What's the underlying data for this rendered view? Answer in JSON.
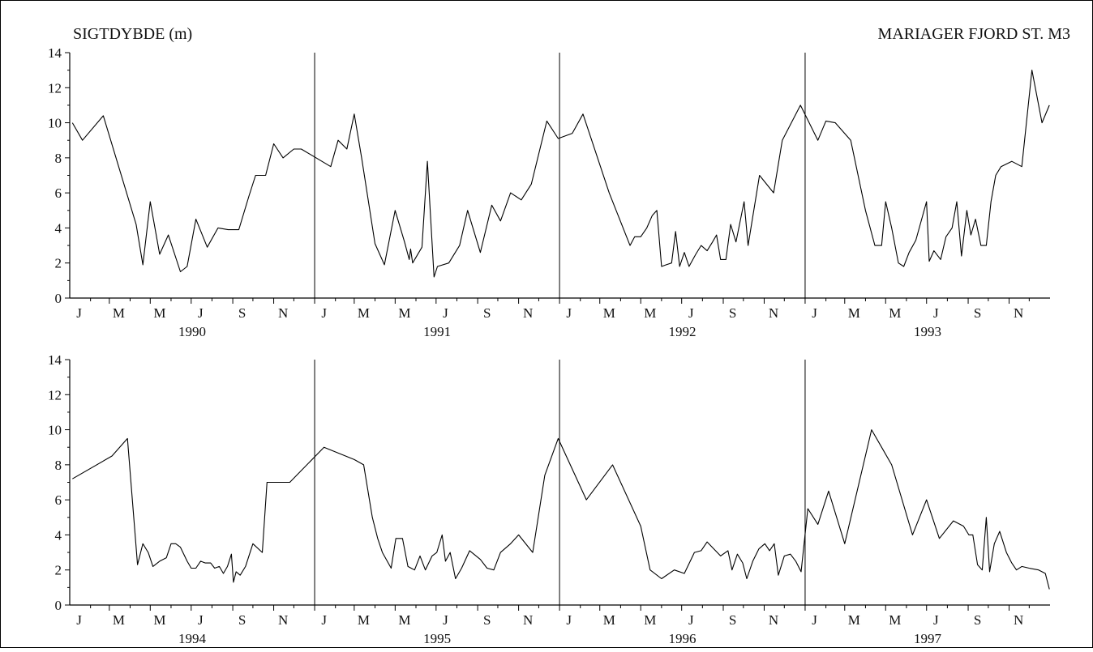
{
  "figure": {
    "title_left": "SIGTDYBDE (m)",
    "title_right": "MARIAGER FJORD  ST. M3"
  },
  "chart_data": [
    {
      "type": "line",
      "title": "",
      "ylim": [
        0,
        14
      ],
      "yticks": [
        0,
        2,
        4,
        6,
        8,
        10,
        12,
        14
      ],
      "xlim": [
        "1990-01-01",
        "1994-01-01"
      ],
      "years": [
        "1990",
        "1991",
        "1992",
        "1993"
      ],
      "month_labels": [
        "J",
        "M",
        "M",
        "J",
        "S",
        "N"
      ],
      "series": [
        {
          "points": [
            [
              "1990-01-05",
              10.0
            ],
            [
              "1990-01-20",
              9.0
            ],
            [
              "1990-02-20",
              10.4
            ],
            [
              "1990-04-10",
              4.2
            ],
            [
              "1990-04-20",
              1.9
            ],
            [
              "1990-05-01",
              5.5
            ],
            [
              "1990-05-15",
              2.5
            ],
            [
              "1990-05-28",
              3.6
            ],
            [
              "1990-06-15",
              1.5
            ],
            [
              "1990-06-25",
              1.8
            ],
            [
              "1990-07-08",
              4.5
            ],
            [
              "1990-07-25",
              2.9
            ],
            [
              "1990-08-10",
              4.0
            ],
            [
              "1990-08-25",
              3.9
            ],
            [
              "1990-09-10",
              3.9
            ],
            [
              "1990-09-25",
              5.8
            ],
            [
              "1990-10-05",
              7.0
            ],
            [
              "1990-10-20",
              7.0
            ],
            [
              "1990-11-01",
              8.8
            ],
            [
              "1990-11-15",
              8.0
            ],
            [
              "1990-12-01",
              8.5
            ],
            [
              "1990-12-12",
              8.5
            ],
            [
              "1991-01-25",
              7.5
            ],
            [
              "1991-02-05",
              9.0
            ],
            [
              "1991-02-18",
              8.5
            ],
            [
              "1991-03-01",
              10.5
            ],
            [
              "1991-03-12",
              8.0
            ],
            [
              "1991-04-01",
              3.1
            ],
            [
              "1991-04-15",
              1.9
            ],
            [
              "1991-05-01",
              5.0
            ],
            [
              "1991-05-15",
              3.2
            ],
            [
              "1991-05-22",
              2.2
            ],
            [
              "1991-05-24",
              2.8
            ],
            [
              "1991-05-27",
              2.0
            ],
            [
              "1991-06-10",
              2.9
            ],
            [
              "1991-06-18",
              7.8
            ],
            [
              "1991-06-28",
              1.2
            ],
            [
              "1991-07-03",
              1.8
            ],
            [
              "1991-07-20",
              2.0
            ],
            [
              "1991-08-05",
              3.0
            ],
            [
              "1991-08-17",
              5.0
            ],
            [
              "1991-09-05",
              2.6
            ],
            [
              "1991-09-22",
              5.3
            ],
            [
              "1991-10-05",
              4.4
            ],
            [
              "1991-10-20",
              6.0
            ],
            [
              "1991-11-05",
              5.6
            ],
            [
              "1991-11-20",
              6.5
            ],
            [
              "1991-12-13",
              10.1
            ],
            [
              "1991-12-30",
              9.1
            ],
            [
              "1992-01-20",
              9.4
            ],
            [
              "1992-02-05",
              10.5
            ],
            [
              "1992-03-15",
              6.0
            ],
            [
              "1992-04-15",
              3.0
            ],
            [
              "1992-04-22",
              3.5
            ],
            [
              "1992-05-01",
              3.5
            ],
            [
              "1992-05-10",
              4.0
            ],
            [
              "1992-05-18",
              4.7
            ],
            [
              "1992-05-25",
              5.0
            ],
            [
              "1992-06-01",
              1.8
            ],
            [
              "1992-06-08",
              1.9
            ],
            [
              "1992-06-16",
              2.0
            ],
            [
              "1992-06-22",
              3.8
            ],
            [
              "1992-06-28",
              1.8
            ],
            [
              "1992-07-05",
              2.6
            ],
            [
              "1992-07-12",
              1.8
            ],
            [
              "1992-07-22",
              2.5
            ],
            [
              "1992-07-30",
              3.0
            ],
            [
              "1992-08-08",
              2.7
            ],
            [
              "1992-08-16",
              3.2
            ],
            [
              "1992-08-22",
              3.6
            ],
            [
              "1992-08-28",
              2.2
            ],
            [
              "1992-09-05",
              2.2
            ],
            [
              "1992-09-12",
              4.2
            ],
            [
              "1992-09-20",
              3.2
            ],
            [
              "1992-10-02",
              5.5
            ],
            [
              "1992-10-08",
              3.0
            ],
            [
              "1992-10-25",
              7.0
            ],
            [
              "1992-11-15",
              6.0
            ],
            [
              "1992-11-28",
              9.0
            ],
            [
              "1992-12-25",
              11.0
            ],
            [
              "1993-01-20",
              9.0
            ],
            [
              "1993-02-01",
              10.1
            ],
            [
              "1993-02-15",
              10.0
            ],
            [
              "1993-03-10",
              9.0
            ],
            [
              "1993-04-01",
              5.0
            ],
            [
              "1993-04-15",
              3.0
            ],
            [
              "1993-04-25",
              3.0
            ],
            [
              "1993-05-01",
              5.5
            ],
            [
              "1993-05-10",
              4.0
            ],
            [
              "1993-05-20",
              2.0
            ],
            [
              "1993-05-28",
              1.8
            ],
            [
              "1993-06-05",
              2.6
            ],
            [
              "1993-06-15",
              3.3
            ],
            [
              "1993-07-01",
              5.5
            ],
            [
              "1993-07-05",
              2.1
            ],
            [
              "1993-07-12",
              2.7
            ],
            [
              "1993-07-22",
              2.2
            ],
            [
              "1993-07-30",
              3.5
            ],
            [
              "1993-08-08",
              4.0
            ],
            [
              "1993-08-15",
              5.5
            ],
            [
              "1993-08-22",
              2.4
            ],
            [
              "1993-08-30",
              5.0
            ],
            [
              "1993-09-05",
              3.6
            ],
            [
              "1993-09-12",
              4.5
            ],
            [
              "1993-09-20",
              3.0
            ],
            [
              "1993-09-28",
              3.0
            ],
            [
              "1993-10-05",
              5.5
            ],
            [
              "1993-10-12",
              7.0
            ],
            [
              "1993-10-20",
              7.5
            ],
            [
              "1993-11-05",
              7.8
            ],
            [
              "1993-11-20",
              7.5
            ],
            [
              "1993-12-05",
              13.0
            ],
            [
              "1993-12-20",
              10.0
            ],
            [
              "1993-12-31",
              11.0
            ]
          ]
        }
      ]
    },
    {
      "type": "line",
      "title": "",
      "ylim": [
        0,
        14
      ],
      "yticks": [
        0,
        2,
        4,
        6,
        8,
        10,
        12,
        14
      ],
      "xlim": [
        "1994-01-01",
        "1998-01-01"
      ],
      "years": [
        "1994",
        "1995",
        "1996",
        "1997"
      ],
      "month_labels": [
        "J",
        "M",
        "M",
        "J",
        "S",
        "N"
      ],
      "series": [
        {
          "points": [
            [
              "1994-01-05",
              7.2
            ],
            [
              "1994-03-05",
              8.5
            ],
            [
              "1994-03-28",
              9.5
            ],
            [
              "1994-04-12",
              2.3
            ],
            [
              "1994-04-20",
              3.5
            ],
            [
              "1994-04-28",
              3.0
            ],
            [
              "1994-05-05",
              2.2
            ],
            [
              "1994-05-15",
              2.5
            ],
            [
              "1994-05-25",
              2.7
            ],
            [
              "1994-06-01",
              3.5
            ],
            [
              "1994-06-08",
              3.5
            ],
            [
              "1994-06-15",
              3.3
            ],
            [
              "1994-06-25",
              2.5
            ],
            [
              "1994-07-01",
              2.1
            ],
            [
              "1994-07-08",
              2.1
            ],
            [
              "1994-07-15",
              2.5
            ],
            [
              "1994-07-22",
              2.4
            ],
            [
              "1994-07-30",
              2.4
            ],
            [
              "1994-08-05",
              2.1
            ],
            [
              "1994-08-12",
              2.2
            ],
            [
              "1994-08-18",
              1.8
            ],
            [
              "1994-08-24",
              2.2
            ],
            [
              "1994-08-30",
              2.9
            ],
            [
              "1994-09-02",
              1.3
            ],
            [
              "1994-09-06",
              1.9
            ],
            [
              "1994-09-12",
              1.7
            ],
            [
              "1994-09-20",
              2.2
            ],
            [
              "1994-10-01",
              3.5
            ],
            [
              "1994-10-15",
              3.0
            ],
            [
              "1994-10-22",
              7.0
            ],
            [
              "1994-11-25",
              7.0
            ],
            [
              "1995-01-15",
              9.0
            ],
            [
              "1995-03-01",
              8.3
            ],
            [
              "1995-03-15",
              8.0
            ],
            [
              "1995-03-28",
              5.0
            ],
            [
              "1995-04-05",
              3.8
            ],
            [
              "1995-04-12",
              3.0
            ],
            [
              "1995-04-25",
              2.1
            ],
            [
              "1995-05-02",
              3.8
            ],
            [
              "1995-05-12",
              3.8
            ],
            [
              "1995-05-20",
              2.2
            ],
            [
              "1995-05-30",
              2.0
            ],
            [
              "1995-06-07",
              2.8
            ],
            [
              "1995-06-15",
              2.0
            ],
            [
              "1995-06-25",
              2.8
            ],
            [
              "1995-07-02",
              3.0
            ],
            [
              "1995-07-10",
              4.0
            ],
            [
              "1995-07-15",
              2.5
            ],
            [
              "1995-07-22",
              3.0
            ],
            [
              "1995-07-30",
              1.5
            ],
            [
              "1995-08-08",
              2.1
            ],
            [
              "1995-08-20",
              3.1
            ],
            [
              "1995-09-05",
              2.6
            ],
            [
              "1995-09-15",
              2.1
            ],
            [
              "1995-09-25",
              2.0
            ],
            [
              "1995-10-05",
              3.0
            ],
            [
              "1995-10-20",
              3.5
            ],
            [
              "1995-11-01",
              4.0
            ],
            [
              "1995-11-22",
              3.0
            ],
            [
              "1995-12-10",
              7.4
            ],
            [
              "1995-12-30",
              9.5
            ],
            [
              "1996-02-10",
              6.0
            ],
            [
              "1996-03-20",
              8.0
            ],
            [
              "1996-05-01",
              4.5
            ],
            [
              "1996-05-15",
              2.0
            ],
            [
              "1996-06-01",
              1.5
            ],
            [
              "1996-06-20",
              2.0
            ],
            [
              "1996-07-05",
              1.8
            ],
            [
              "1996-07-20",
              3.0
            ],
            [
              "1996-07-30",
              3.1
            ],
            [
              "1996-08-08",
              3.6
            ],
            [
              "1996-08-18",
              3.2
            ],
            [
              "1996-08-28",
              2.8
            ],
            [
              "1996-09-08",
              3.1
            ],
            [
              "1996-09-14",
              2.0
            ],
            [
              "1996-09-22",
              2.9
            ],
            [
              "1996-09-30",
              2.4
            ],
            [
              "1996-10-06",
              1.5
            ],
            [
              "1996-10-15",
              2.5
            ],
            [
              "1996-10-24",
              3.2
            ],
            [
              "1996-11-02",
              3.5
            ],
            [
              "1996-11-09",
              3.1
            ],
            [
              "1996-11-16",
              3.5
            ],
            [
              "1996-11-22",
              1.7
            ],
            [
              "1996-12-01",
              2.8
            ],
            [
              "1996-12-10",
              2.9
            ],
            [
              "1996-12-18",
              2.5
            ],
            [
              "1996-12-26",
              1.9
            ],
            [
              "1997-01-05",
              5.5
            ],
            [
              "1997-01-20",
              4.6
            ],
            [
              "1997-02-05",
              6.5
            ],
            [
              "1997-03-01",
              3.5
            ],
            [
              "1997-04-10",
              10.0
            ],
            [
              "1997-04-25",
              9.0
            ],
            [
              "1997-05-10",
              8.0
            ],
            [
              "1997-06-10",
              4.0
            ],
            [
              "1997-07-01",
              6.0
            ],
            [
              "1997-07-20",
              3.8
            ],
            [
              "1997-08-10",
              4.8
            ],
            [
              "1997-08-25",
              4.5
            ],
            [
              "1997-09-02",
              4.0
            ],
            [
              "1997-09-08",
              4.0
            ],
            [
              "1997-09-15",
              2.3
            ],
            [
              "1997-09-22",
              2.0
            ],
            [
              "1997-09-28",
              5.0
            ],
            [
              "1997-10-03",
              1.9
            ],
            [
              "1997-10-10",
              3.5
            ],
            [
              "1997-10-18",
              4.2
            ],
            [
              "1997-10-28",
              3.0
            ],
            [
              "1997-11-05",
              2.4
            ],
            [
              "1997-11-12",
              2.0
            ],
            [
              "1997-11-20",
              2.2
            ],
            [
              "1997-12-01",
              2.1
            ],
            [
              "1997-12-15",
              2.0
            ],
            [
              "1997-12-25",
              1.8
            ],
            [
              "1997-12-31",
              0.9
            ]
          ]
        }
      ]
    }
  ]
}
